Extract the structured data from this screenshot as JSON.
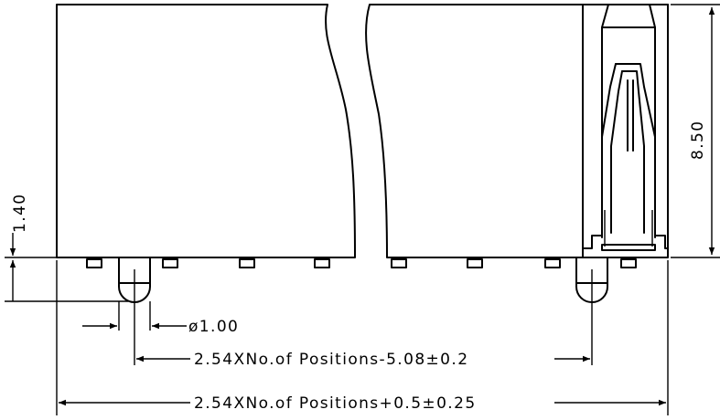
{
  "dimensions": {
    "height": "8.50",
    "pin_length": "1.40",
    "pin_diameter": "ø1.00",
    "pin_span": "2.54XNo.of Positions-5.08±0.2",
    "overall_length": "2.54XNo.of Positions+0.5±0.25"
  }
}
